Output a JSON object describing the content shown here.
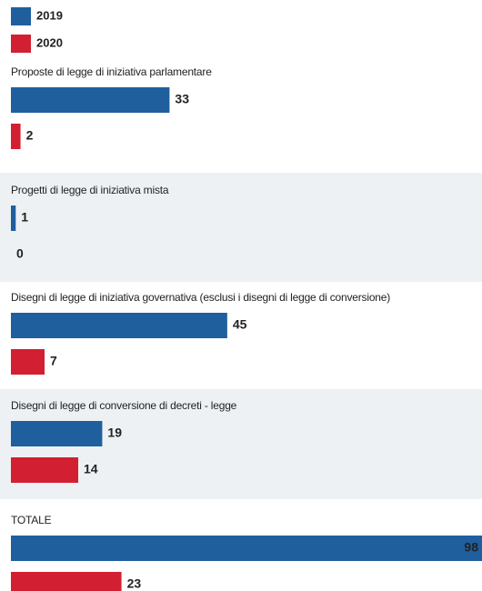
{
  "chart_data": {
    "type": "bar",
    "categories": [
      "Proposte di legge di iniziativa parlamentare",
      "Progetti di legge di iniziativa mista",
      "Disegni di legge di iniziativa governativa (esclusi i disegni di legge di conversione)",
      "Disegni di legge di conversione di decreti - legge",
      "TOTALE"
    ],
    "series": [
      {
        "name": "2019",
        "color": "#1f5f9e",
        "values": [
          33,
          1,
          45,
          19,
          98
        ]
      },
      {
        "name": "2020",
        "color": "#d21f32",
        "values": [
          2,
          0,
          7,
          14,
          23
        ]
      }
    ]
  }
}
